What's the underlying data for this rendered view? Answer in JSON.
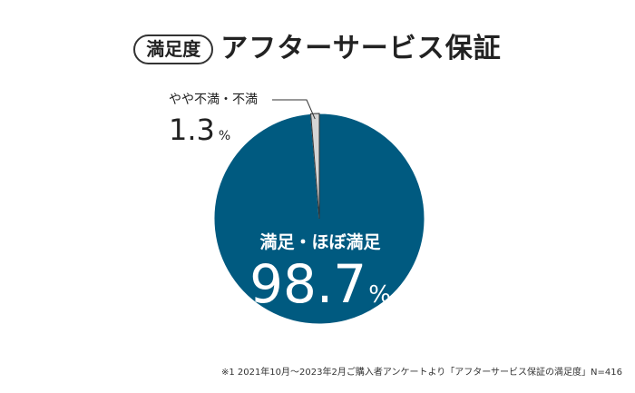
{
  "title": {
    "badge": "満足度",
    "main": "アフターサービス保証"
  },
  "chart_data": {
    "type": "pie",
    "slices": [
      {
        "label": "満足・ほぼ満足",
        "value": 98.7,
        "display_value": "98.7",
        "unit": "%",
        "color": "#005a80"
      },
      {
        "label": "やや不満・不満",
        "value": 1.3,
        "display_value": "1.3",
        "unit": "%",
        "color": "#d4d4d4"
      }
    ]
  },
  "footnote": "※1 2021年10月～2023年2月ご購入者アンケートより「アフターサービス保証の満足度」N=416"
}
